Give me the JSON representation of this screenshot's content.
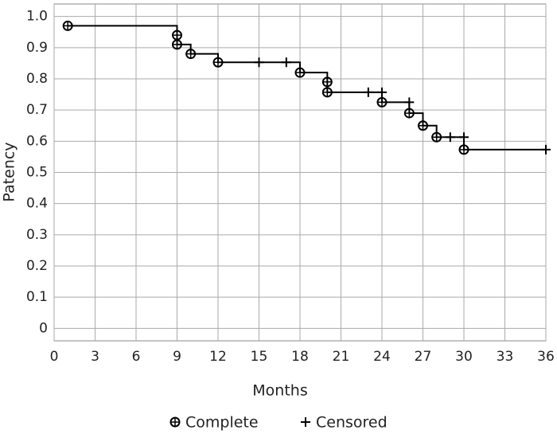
{
  "chart_data": {
    "type": "kaplan-meier",
    "x_label": "Months",
    "y_label": "Patency",
    "xlim": [
      0,
      36
    ],
    "ylim": [
      -0.04,
      1.04
    ],
    "xticks": [
      0,
      3,
      6,
      9,
      12,
      15,
      18,
      21,
      24,
      27,
      30,
      33,
      36
    ],
    "yticks": [
      0,
      0.1,
      0.2,
      0.3,
      0.4,
      0.5,
      0.6,
      0.7,
      0.8,
      0.9,
      {
        "value": 1,
        "label": "1.0"
      }
    ],
    "grid": true,
    "legend": "bottom",
    "color": "#000000",
    "curve": {
      "x": [
        1,
        9,
        9,
        10,
        10,
        12,
        12,
        18,
        18,
        20,
        20,
        24,
        24,
        26,
        26,
        27,
        27,
        28,
        28,
        30,
        30,
        36
      ],
      "values": [
        0.97,
        0.97,
        0.91,
        0.91,
        0.88,
        0.88,
        0.853,
        0.853,
        0.82,
        0.82,
        0.757,
        0.757,
        0.725,
        0.725,
        0.69,
        0.69,
        0.65,
        0.65,
        0.613,
        0.613,
        0.573,
        0.573
      ]
    },
    "series": [
      {
        "name": "Complete",
        "marker": "circle",
        "x": [
          1,
          9,
          9,
          10,
          12,
          18,
          20,
          20,
          24,
          26,
          27,
          28,
          30
        ],
        "values": [
          0.97,
          0.94,
          0.91,
          0.88,
          0.853,
          0.82,
          0.79,
          0.757,
          0.725,
          0.69,
          0.65,
          0.613,
          0.573
        ]
      },
      {
        "name": "Censored",
        "marker": "plus",
        "x": [
          15,
          17,
          23,
          24,
          26,
          29,
          30,
          36
        ],
        "values": [
          0.853,
          0.853,
          0.757,
          0.757,
          0.725,
          0.613,
          0.613,
          0.573
        ]
      }
    ]
  }
}
